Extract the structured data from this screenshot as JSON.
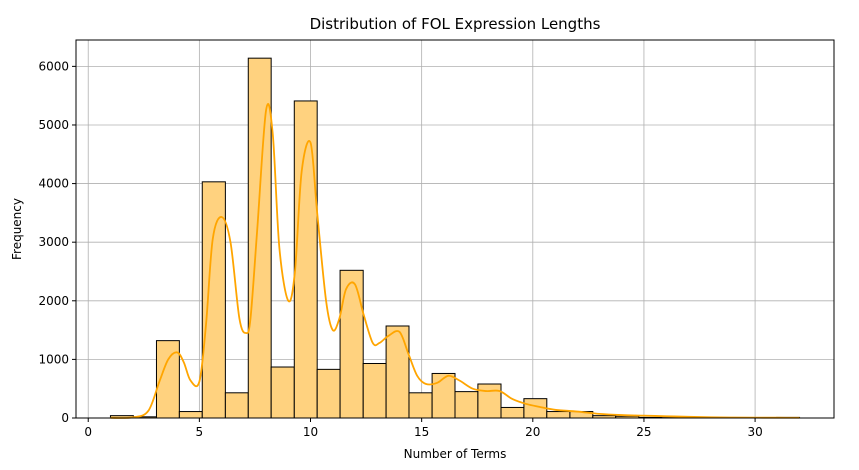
{
  "chart_data": {
    "type": "bar",
    "title": "Distribution of FOL Expression Lengths",
    "xlabel": "Number of Terms",
    "ylabel": "Frequency",
    "xlim": [
      -0.55,
      33.55
    ],
    "ylim": [
      0,
      6450
    ],
    "grid": true,
    "x_ticks": [
      0,
      5,
      10,
      15,
      20,
      25,
      30
    ],
    "y_ticks": [
      0,
      1000,
      2000,
      3000,
      4000,
      5000,
      6000
    ],
    "bins": [
      {
        "x0": 1.0,
        "x1": 2.03,
        "value": 40
      },
      {
        "x0": 2.03,
        "x1": 3.07,
        "value": 20
      },
      {
        "x0": 3.07,
        "x1": 4.1,
        "value": 1320
      },
      {
        "x0": 4.1,
        "x1": 5.13,
        "value": 110
      },
      {
        "x0": 5.13,
        "x1": 6.17,
        "value": 4030
      },
      {
        "x0": 6.17,
        "x1": 7.2,
        "value": 430
      },
      {
        "x0": 7.2,
        "x1": 8.23,
        "value": 6140
      },
      {
        "x0": 8.23,
        "x1": 9.27,
        "value": 870
      },
      {
        "x0": 9.27,
        "x1": 10.3,
        "value": 5410
      },
      {
        "x0": 10.3,
        "x1": 11.33,
        "value": 830
      },
      {
        "x0": 11.33,
        "x1": 12.37,
        "value": 2520
      },
      {
        "x0": 12.37,
        "x1": 13.4,
        "value": 930
      },
      {
        "x0": 13.4,
        "x1": 14.43,
        "value": 1570
      },
      {
        "x0": 14.43,
        "x1": 15.47,
        "value": 430
      },
      {
        "x0": 15.47,
        "x1": 16.5,
        "value": 760
      },
      {
        "x0": 16.5,
        "x1": 17.53,
        "value": 450
      },
      {
        "x0": 17.53,
        "x1": 18.57,
        "value": 580
      },
      {
        "x0": 18.57,
        "x1": 19.6,
        "value": 180
      },
      {
        "x0": 19.6,
        "x1": 20.63,
        "value": 330
      },
      {
        "x0": 20.63,
        "x1": 21.67,
        "value": 110
      },
      {
        "x0": 21.67,
        "x1": 22.7,
        "value": 110
      },
      {
        "x0": 22.7,
        "x1": 23.73,
        "value": 40
      },
      {
        "x0": 23.73,
        "x1": 24.77,
        "value": 30
      },
      {
        "x0": 24.77,
        "x1": 25.8,
        "value": 10
      },
      {
        "x0": 25.8,
        "x1": 26.83,
        "value": 20
      },
      {
        "x0": 26.83,
        "x1": 27.87,
        "value": 5
      },
      {
        "x0": 27.87,
        "x1": 28.9,
        "value": 5
      },
      {
        "x0": 28.9,
        "x1": 29.93,
        "value": 5
      },
      {
        "x0": 29.93,
        "x1": 30.97,
        "value": 5
      },
      {
        "x0": 30.97,
        "x1": 32.0,
        "value": 10
      }
    ],
    "kde": {
      "x": [
        1.0,
        2.0,
        2.7,
        3.2,
        3.6,
        4.0,
        4.3,
        4.6,
        5.0,
        5.3,
        5.6,
        6.0,
        6.4,
        6.8,
        7.1,
        7.3,
        7.6,
        8.0,
        8.3,
        8.6,
        9.0,
        9.3,
        9.6,
        10.0,
        10.3,
        10.7,
        11.0,
        11.3,
        11.6,
        12.0,
        12.4,
        12.8,
        13.1,
        13.5,
        14.0,
        14.4,
        14.8,
        15.2,
        15.7,
        16.2,
        16.7,
        17.3,
        17.9,
        18.5,
        19.1,
        19.7,
        20.3,
        21.0,
        22.0,
        23.0,
        24.0,
        25.0,
        26.0,
        27.0,
        28.0,
        29.0,
        30.0,
        31.0,
        32.0
      ],
      "y": [
        2,
        10,
        120,
        620,
        1000,
        1120,
        950,
        640,
        620,
        1600,
        3050,
        3430,
        3000,
        1700,
        1450,
        1700,
        3200,
        5250,
        4850,
        2900,
        2000,
        2500,
        4200,
        4700,
        3500,
        2000,
        1500,
        1700,
        2200,
        2280,
        1750,
        1280,
        1280,
        1400,
        1470,
        1100,
        720,
        580,
        600,
        720,
        640,
        500,
        460,
        460,
        320,
        240,
        190,
        140,
        110,
        70,
        50,
        40,
        30,
        20,
        12,
        8,
        6,
        5,
        4
      ]
    },
    "colors": {
      "bar_fill": "#ffd27f",
      "bar_edge": "#000000",
      "kde_line": "#ffa500",
      "grid": "#b0b0b0"
    }
  }
}
